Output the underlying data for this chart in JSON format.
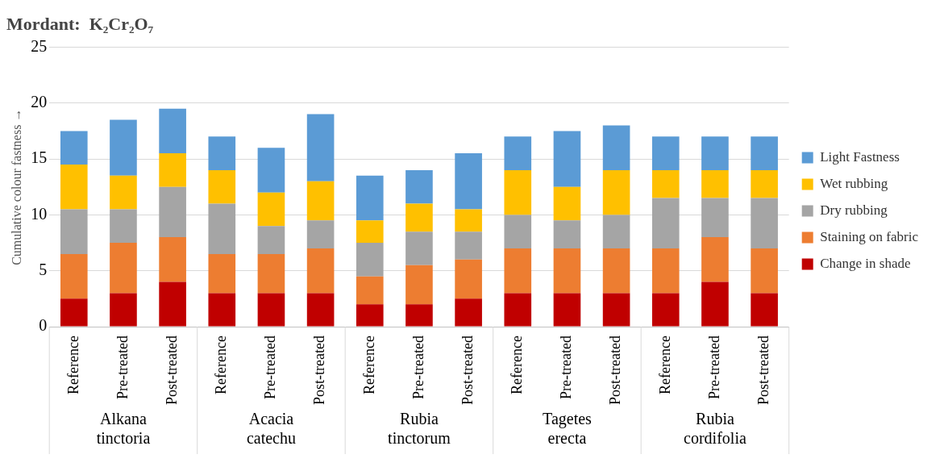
{
  "chart_data": {
    "type": "bar",
    "stacked": true,
    "title": "Mordant:  K₂Cr₂O₇",
    "ylabel": "Cumulative colour fastness →",
    "categories": [
      "Reference",
      "Pre-treated",
      "Post-treated",
      "Reference",
      "Pre-treated",
      "Post-treated",
      "Reference",
      "Pre-treated",
      "Post-treated",
      "Reference",
      "Pre-treated",
      "Post-treated",
      "Reference",
      "Pre-treated",
      "Post-treated"
    ],
    "annotations": [
      "Alkana tinctoria",
      "Acacia catechu",
      "Rubia tinctorum",
      "Tagetes erecta",
      "Rubia cordifolia"
    ],
    "series": [
      {
        "name": "Change in shade",
        "color": "#c00000",
        "values": [
          2.5,
          3,
          4,
          3,
          3,
          3,
          2,
          2,
          2.5,
          3,
          3,
          3,
          3,
          4,
          3
        ]
      },
      {
        "name": "Staining on fabric",
        "color": "#ed7d31",
        "values": [
          4,
          4.5,
          4,
          3.5,
          3.5,
          4,
          2.5,
          3.5,
          3.5,
          4,
          4,
          4,
          4,
          4,
          4
        ]
      },
      {
        "name": "Dry rubbing",
        "color": "#a5a5a5",
        "values": [
          4,
          3,
          4.5,
          4.5,
          2.5,
          2.5,
          3,
          3,
          2.5,
          3,
          2.5,
          3,
          4.5,
          3.5,
          4.5
        ]
      },
      {
        "name": "Wet rubbing",
        "color": "#ffc000",
        "values": [
          4,
          3,
          3,
          3,
          3,
          3.5,
          2,
          2.5,
          2,
          4,
          3,
          4,
          2.5,
          2.5,
          2.5
        ]
      },
      {
        "name": "Light Fastness",
        "color": "#5b9bd5",
        "values": [
          3,
          5,
          4,
          3,
          4,
          6,
          4,
          3,
          5,
          3,
          5,
          4,
          3,
          3,
          3
        ]
      }
    ],
    "ylim": [
      0,
      25
    ],
    "yticks": [
      0,
      5,
      10,
      15,
      20,
      25
    ],
    "grid": "y",
    "legend": "right"
  }
}
